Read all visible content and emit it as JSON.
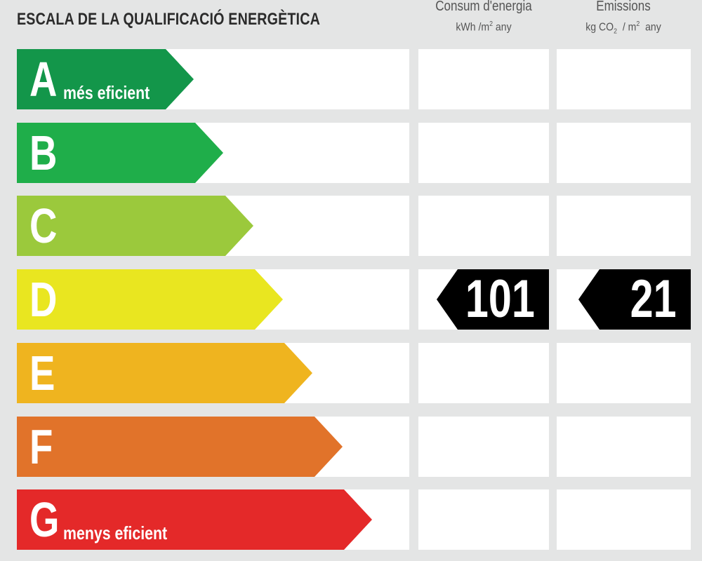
{
  "title": "ESCALA DE LA QUALIFICACIÓ ENERGÈTICA",
  "columns": {
    "energy": {
      "title": "Consum d'energia",
      "unit_pre": "kWh /m",
      "unit_sup": "2",
      "unit_post": " any"
    },
    "emissions": {
      "title": "Emissions",
      "unit_pre": "kg CO",
      "unit_sub": "2",
      "unit_mid": "  / m",
      "unit_sup": "2",
      "unit_post": "  any"
    }
  },
  "ratings": [
    {
      "letter": "A",
      "sub": "més eficient",
      "color": "#13964a"
    },
    {
      "letter": "B",
      "sub": "",
      "color": "#1fae4a"
    },
    {
      "letter": "C",
      "sub": "",
      "color": "#9bc93c"
    },
    {
      "letter": "D",
      "sub": "",
      "color": "#e9e620"
    },
    {
      "letter": "E",
      "sub": "",
      "color": "#efb41f"
    },
    {
      "letter": "F",
      "sub": "",
      "color": "#e1732a"
    },
    {
      "letter": "G",
      "sub": "menys eficient",
      "color": "#e42929"
    }
  ],
  "result": {
    "rating": "D",
    "energy_value": "101",
    "emissions_value": "21"
  }
}
